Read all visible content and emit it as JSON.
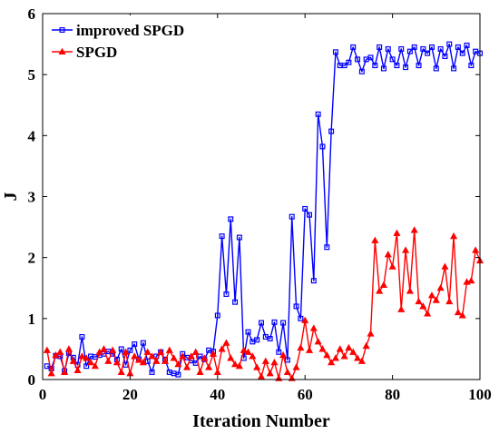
{
  "chart_data": {
    "type": "line",
    "title": "",
    "xlabel": "Iteration Number",
    "ylabel": "J",
    "xlim": [
      0,
      100
    ],
    "ylim": [
      0,
      6
    ],
    "xticks": [
      0,
      20,
      40,
      60,
      80,
      100
    ],
    "yticks": [
      0,
      1,
      2,
      3,
      4,
      5,
      6
    ],
    "grid": false,
    "legend_position": "top-left",
    "series": [
      {
        "name": "improved SPGD",
        "color": "#0000ff",
        "marker": "square",
        "x": [
          1,
          2,
          3,
          4,
          5,
          6,
          7,
          8,
          9,
          10,
          11,
          12,
          13,
          14,
          15,
          16,
          17,
          18,
          19,
          20,
          21,
          22,
          23,
          24,
          25,
          26,
          27,
          28,
          29,
          30,
          31,
          32,
          33,
          34,
          35,
          36,
          37,
          38,
          39,
          40,
          41,
          42,
          43,
          44,
          45,
          46,
          47,
          48,
          49,
          50,
          51,
          52,
          53,
          54,
          55,
          56,
          57,
          58,
          59,
          60,
          61,
          62,
          63,
          64,
          65,
          66,
          67,
          68,
          69,
          70,
          71,
          72,
          73,
          74,
          75,
          76,
          77,
          78,
          79,
          80,
          81,
          82,
          83,
          84,
          85,
          86,
          87,
          88,
          89,
          90,
          91,
          92,
          93,
          94,
          95,
          96,
          97,
          98,
          99,
          100
        ],
        "values": [
          0.22,
          0.18,
          0.39,
          0.38,
          0.14,
          0.43,
          0.36,
          0.24,
          0.7,
          0.22,
          0.38,
          0.37,
          0.4,
          0.42,
          0.46,
          0.42,
          0.33,
          0.5,
          0.24,
          0.48,
          0.58,
          0.33,
          0.6,
          0.3,
          0.12,
          0.38,
          0.45,
          0.33,
          0.12,
          0.1,
          0.08,
          0.42,
          0.36,
          0.31,
          0.27,
          0.38,
          0.33,
          0.48,
          0.46,
          1.05,
          2.35,
          1.4,
          2.63,
          1.27,
          2.33,
          0.35,
          0.78,
          0.62,
          0.65,
          0.93,
          0.7,
          0.67,
          0.94,
          0.45,
          0.93,
          0.32,
          2.67,
          1.2,
          1.0,
          2.8,
          2.7,
          1.62,
          4.35,
          3.82,
          2.17,
          4.07,
          5.37,
          5.15,
          5.15,
          5.2,
          5.45,
          5.25,
          5.05,
          5.25,
          5.28,
          5.15,
          5.45,
          5.1,
          5.42,
          5.25,
          5.15,
          5.42,
          5.12,
          5.38,
          5.45,
          5.15,
          5.42,
          5.35,
          5.45,
          5.1,
          5.42,
          5.3,
          5.5,
          5.1,
          5.45,
          5.35,
          5.48,
          5.15,
          5.38,
          5.35
        ]
      },
      {
        "name": "SPGD",
        "color": "#ff0000",
        "marker": "triangle",
        "x": [
          1,
          2,
          3,
          4,
          5,
          6,
          7,
          8,
          9,
          10,
          11,
          12,
          13,
          14,
          15,
          16,
          17,
          18,
          19,
          20,
          21,
          22,
          23,
          24,
          25,
          26,
          27,
          28,
          29,
          30,
          31,
          32,
          33,
          34,
          35,
          36,
          37,
          38,
          39,
          40,
          41,
          42,
          43,
          44,
          45,
          46,
          47,
          48,
          49,
          50,
          51,
          52,
          53,
          54,
          55,
          56,
          57,
          58,
          59,
          60,
          61,
          62,
          63,
          64,
          65,
          66,
          67,
          68,
          69,
          70,
          71,
          72,
          73,
          74,
          75,
          76,
          77,
          78,
          79,
          80,
          81,
          82,
          83,
          84,
          85,
          86,
          87,
          88,
          89,
          90,
          91,
          92,
          93,
          94,
          95,
          96,
          97,
          98,
          99,
          100
        ],
        "values": [
          0.48,
          0.1,
          0.4,
          0.45,
          0.12,
          0.5,
          0.3,
          0.15,
          0.38,
          0.35,
          0.28,
          0.22,
          0.45,
          0.5,
          0.3,
          0.48,
          0.28,
          0.12,
          0.45,
          0.1,
          0.38,
          0.32,
          0.28,
          0.45,
          0.38,
          0.3,
          0.45,
          0.3,
          0.48,
          0.35,
          0.25,
          0.38,
          0.2,
          0.38,
          0.45,
          0.12,
          0.35,
          0.2,
          0.42,
          0.12,
          0.5,
          0.6,
          0.35,
          0.25,
          0.22,
          0.48,
          0.45,
          0.38,
          0.2,
          0.05,
          0.3,
          0.1,
          0.28,
          0.02,
          0.4,
          0.12,
          0.02,
          0.2,
          0.52,
          0.97,
          0.48,
          0.84,
          0.62,
          0.5,
          0.4,
          0.28,
          0.35,
          0.5,
          0.38,
          0.52,
          0.45,
          0.35,
          0.3,
          0.55,
          0.75,
          2.28,
          1.45,
          1.55,
          2.05,
          1.85,
          2.4,
          1.15,
          2.12,
          1.45,
          2.45,
          1.28,
          1.2,
          1.08,
          1.38,
          1.3,
          1.5,
          1.85,
          1.28,
          2.35,
          1.1,
          1.05,
          1.6,
          1.62,
          2.12,
          1.95
        ]
      }
    ]
  }
}
